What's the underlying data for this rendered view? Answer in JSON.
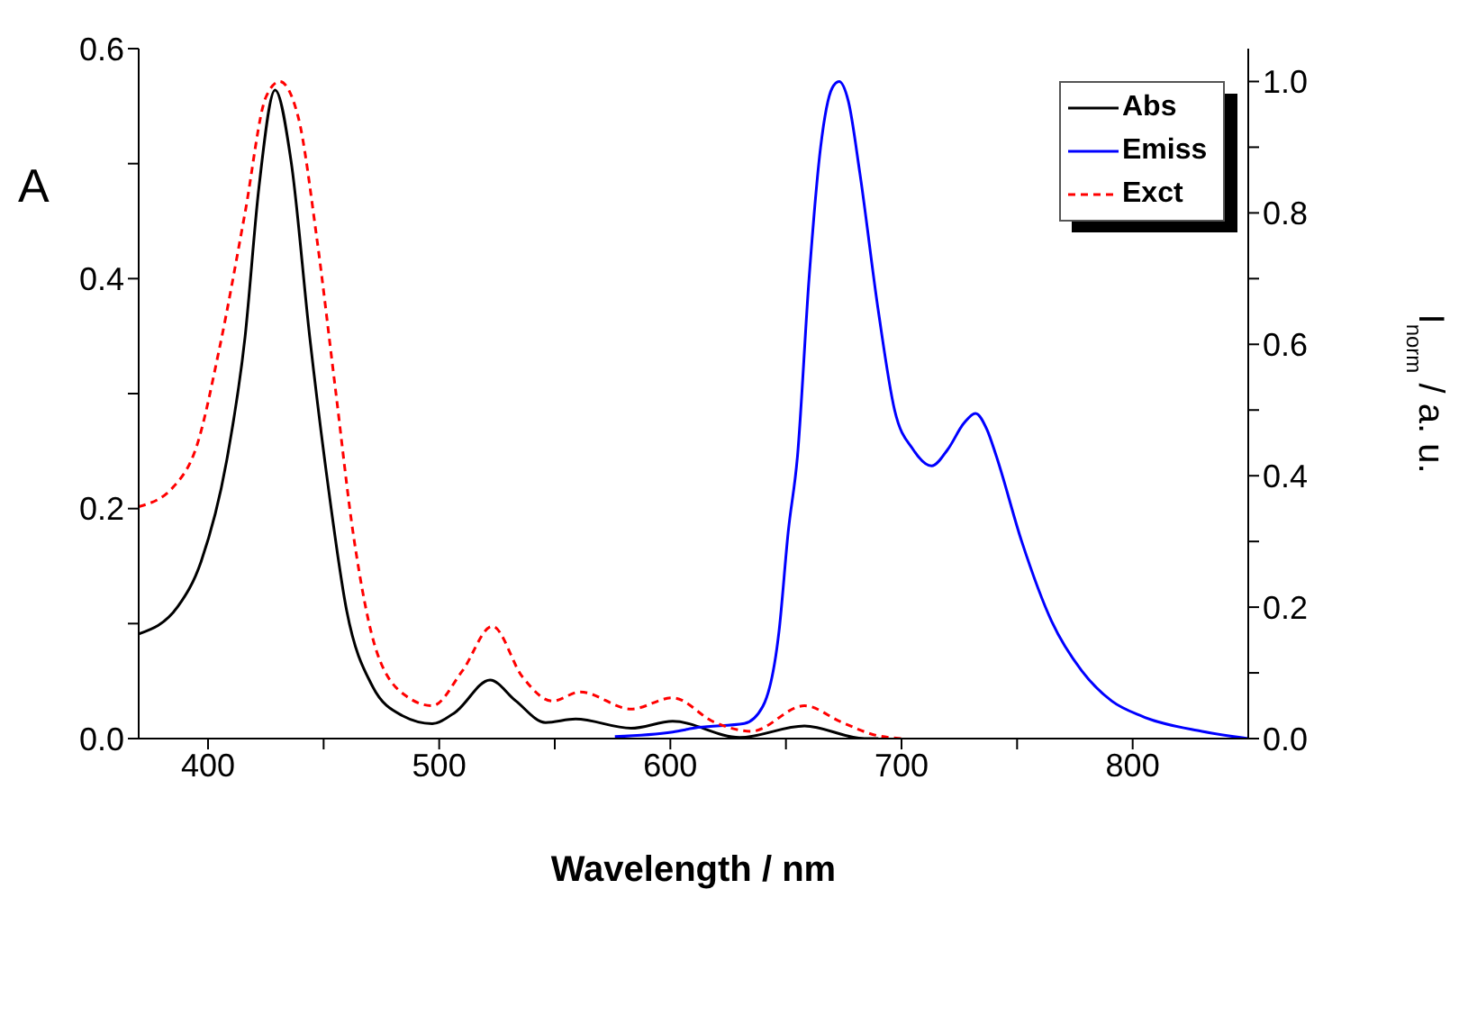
{
  "chart_data": {
    "type": "line",
    "xlabel": "Wavelength / nm",
    "ylabel": "A",
    "y2label": "I$_{norm}$ / a. u.",
    "xlim": [
      370,
      850
    ],
    "xticks": [
      400,
      {
        "value": 450,
        "label": null
      },
      500,
      {
        "value": 550,
        "label": null
      },
      600,
      {
        "value": 650,
        "label": null
      },
      700,
      {
        "value": 750,
        "label": null
      },
      800
    ],
    "ylim": [
      0,
      0.6
    ],
    "yticks": [
      {
        "value": 0,
        "label": "0.0"
      },
      {
        "value": 0.1,
        "label": null
      },
      0.2,
      {
        "value": 0.3,
        "label": null
      },
      0.4,
      {
        "value": 0.5,
        "label": null
      },
      0.6
    ],
    "y2lim": [
      0,
      1.05
    ],
    "y2ticks": [
      {
        "value": 0,
        "label": "0.0"
      },
      {
        "value": 0.1,
        "label": null
      },
      0.2,
      {
        "value": 0.3,
        "label": null
      },
      0.4,
      {
        "value": 0.5,
        "label": null
      },
      0.6,
      {
        "value": 0.7,
        "label": null
      },
      0.8,
      {
        "value": 0.9,
        "label": null
      },
      {
        "value": 1,
        "label": "1.0"
      }
    ],
    "legend": "top right",
    "marker": "none",
    "series": [
      {
        "name": "Abs",
        "color": "#000000",
        "line_style": "solid",
        "x": [
          370,
          387,
          397,
          408,
          416,
          422,
          429,
          436,
          444,
          452,
          460,
          471,
          484,
          497,
          507,
          522,
          533,
          546,
          559,
          583,
          601,
          630,
          658,
          684,
          690
        ],
        "values": [
          0.091,
          0.115,
          0.154,
          0.241,
          0.349,
          0.479,
          0.564,
          0.501,
          0.349,
          0.219,
          0.111,
          0.046,
          0.02,
          0.013,
          0.023,
          0.051,
          0.033,
          0.014,
          0.017,
          0.009,
          0.015,
          0.001,
          0.011,
          0,
          0
        ]
      },
      {
        "name": "Emiss",
        "color": "#0000ff",
        "line_style": "solid",
        "axis": "y2",
        "x": [
          576,
          601,
          612,
          632,
          640,
          647,
          651,
          655,
          660,
          665,
          670,
          673,
          677,
          682,
          690,
          697,
          705,
          713,
          720,
          727,
          732,
          737,
          741,
          752,
          765,
          778,
          791,
          804,
          830,
          850
        ],
        "values": [
          0.003,
          0.01,
          0.017,
          0.023,
          0.049,
          0.163,
          0.315,
          0.43,
          0.7,
          0.9,
          0.99,
          1.0,
          0.97,
          0.86,
          0.65,
          0.5,
          0.44,
          0.415,
          0.44,
          0.48,
          0.495,
          0.47,
          0.43,
          0.3,
          0.178,
          0.103,
          0.057,
          0.034,
          0.011,
          0
        ]
      },
      {
        "name": "Exct",
        "color": "#ff0000",
        "line_style": "dashed",
        "axis": "y2",
        "x": [
          370,
          385,
          395,
          405,
          416,
          425,
          431,
          439,
          447,
          455,
          463,
          473,
          486,
          497,
          510,
          523,
          536,
          549,
          561,
          583,
          601,
          619,
          635,
          658,
          674,
          689,
          700
        ],
        "values": [
          0.353,
          0.383,
          0.444,
          0.595,
          0.8,
          0.976,
          1.0,
          0.946,
          0.763,
          0.535,
          0.307,
          0.132,
          0.064,
          0.05,
          0.103,
          0.171,
          0.094,
          0.057,
          0.071,
          0.045,
          0.062,
          0.025,
          0.011,
          0.05,
          0.025,
          0.005,
          0
        ]
      }
    ]
  }
}
